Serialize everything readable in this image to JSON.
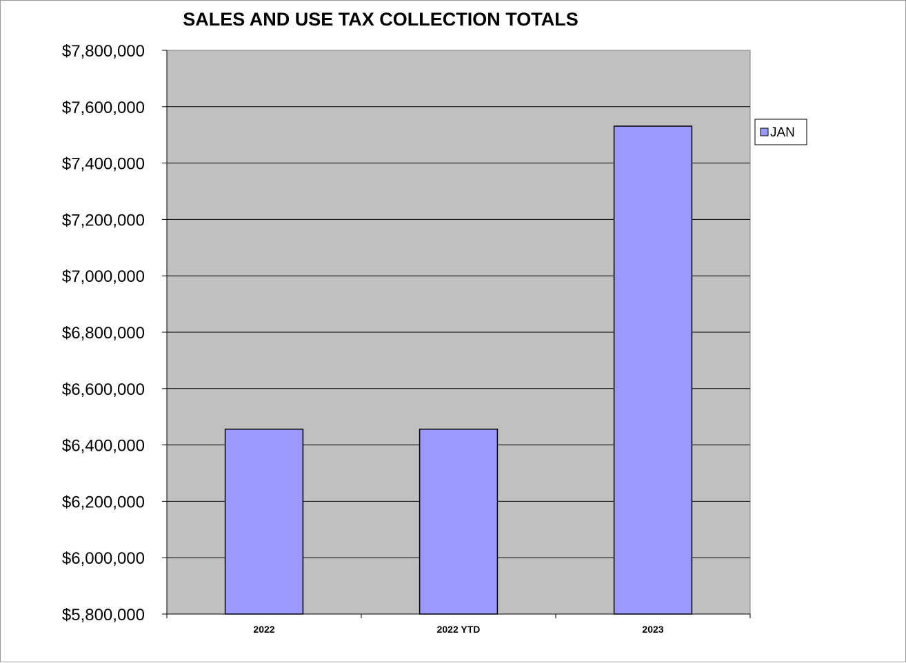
{
  "chart_data": {
    "type": "bar",
    "title": "SALES AND USE TAX COLLECTION TOTALS",
    "xlabel": "",
    "ylabel": "",
    "categories": [
      "2022",
      "2022 YTD",
      "2023"
    ],
    "series": [
      {
        "name": "JAN",
        "values": [
          6456000,
          6456000,
          7531000
        ],
        "color": "#9999ff"
      }
    ],
    "ylim": [
      5800000,
      7800000
    ],
    "yticks": [
      5800000,
      6000000,
      6200000,
      6400000,
      6600000,
      6800000,
      7000000,
      7200000,
      7400000,
      7600000,
      7800000
    ],
    "ytick_labels": [
      "$5,800,000",
      "$6,000,000",
      "$6,200,000",
      "$6,400,000",
      "$6,600,000",
      "$6,800,000",
      "$7,000,000",
      "$7,200,000",
      "$7,400,000",
      "$7,600,000",
      "$7,800,000"
    ],
    "grid": true,
    "legend_position": "right",
    "plot_background": "#c0c0c0"
  }
}
